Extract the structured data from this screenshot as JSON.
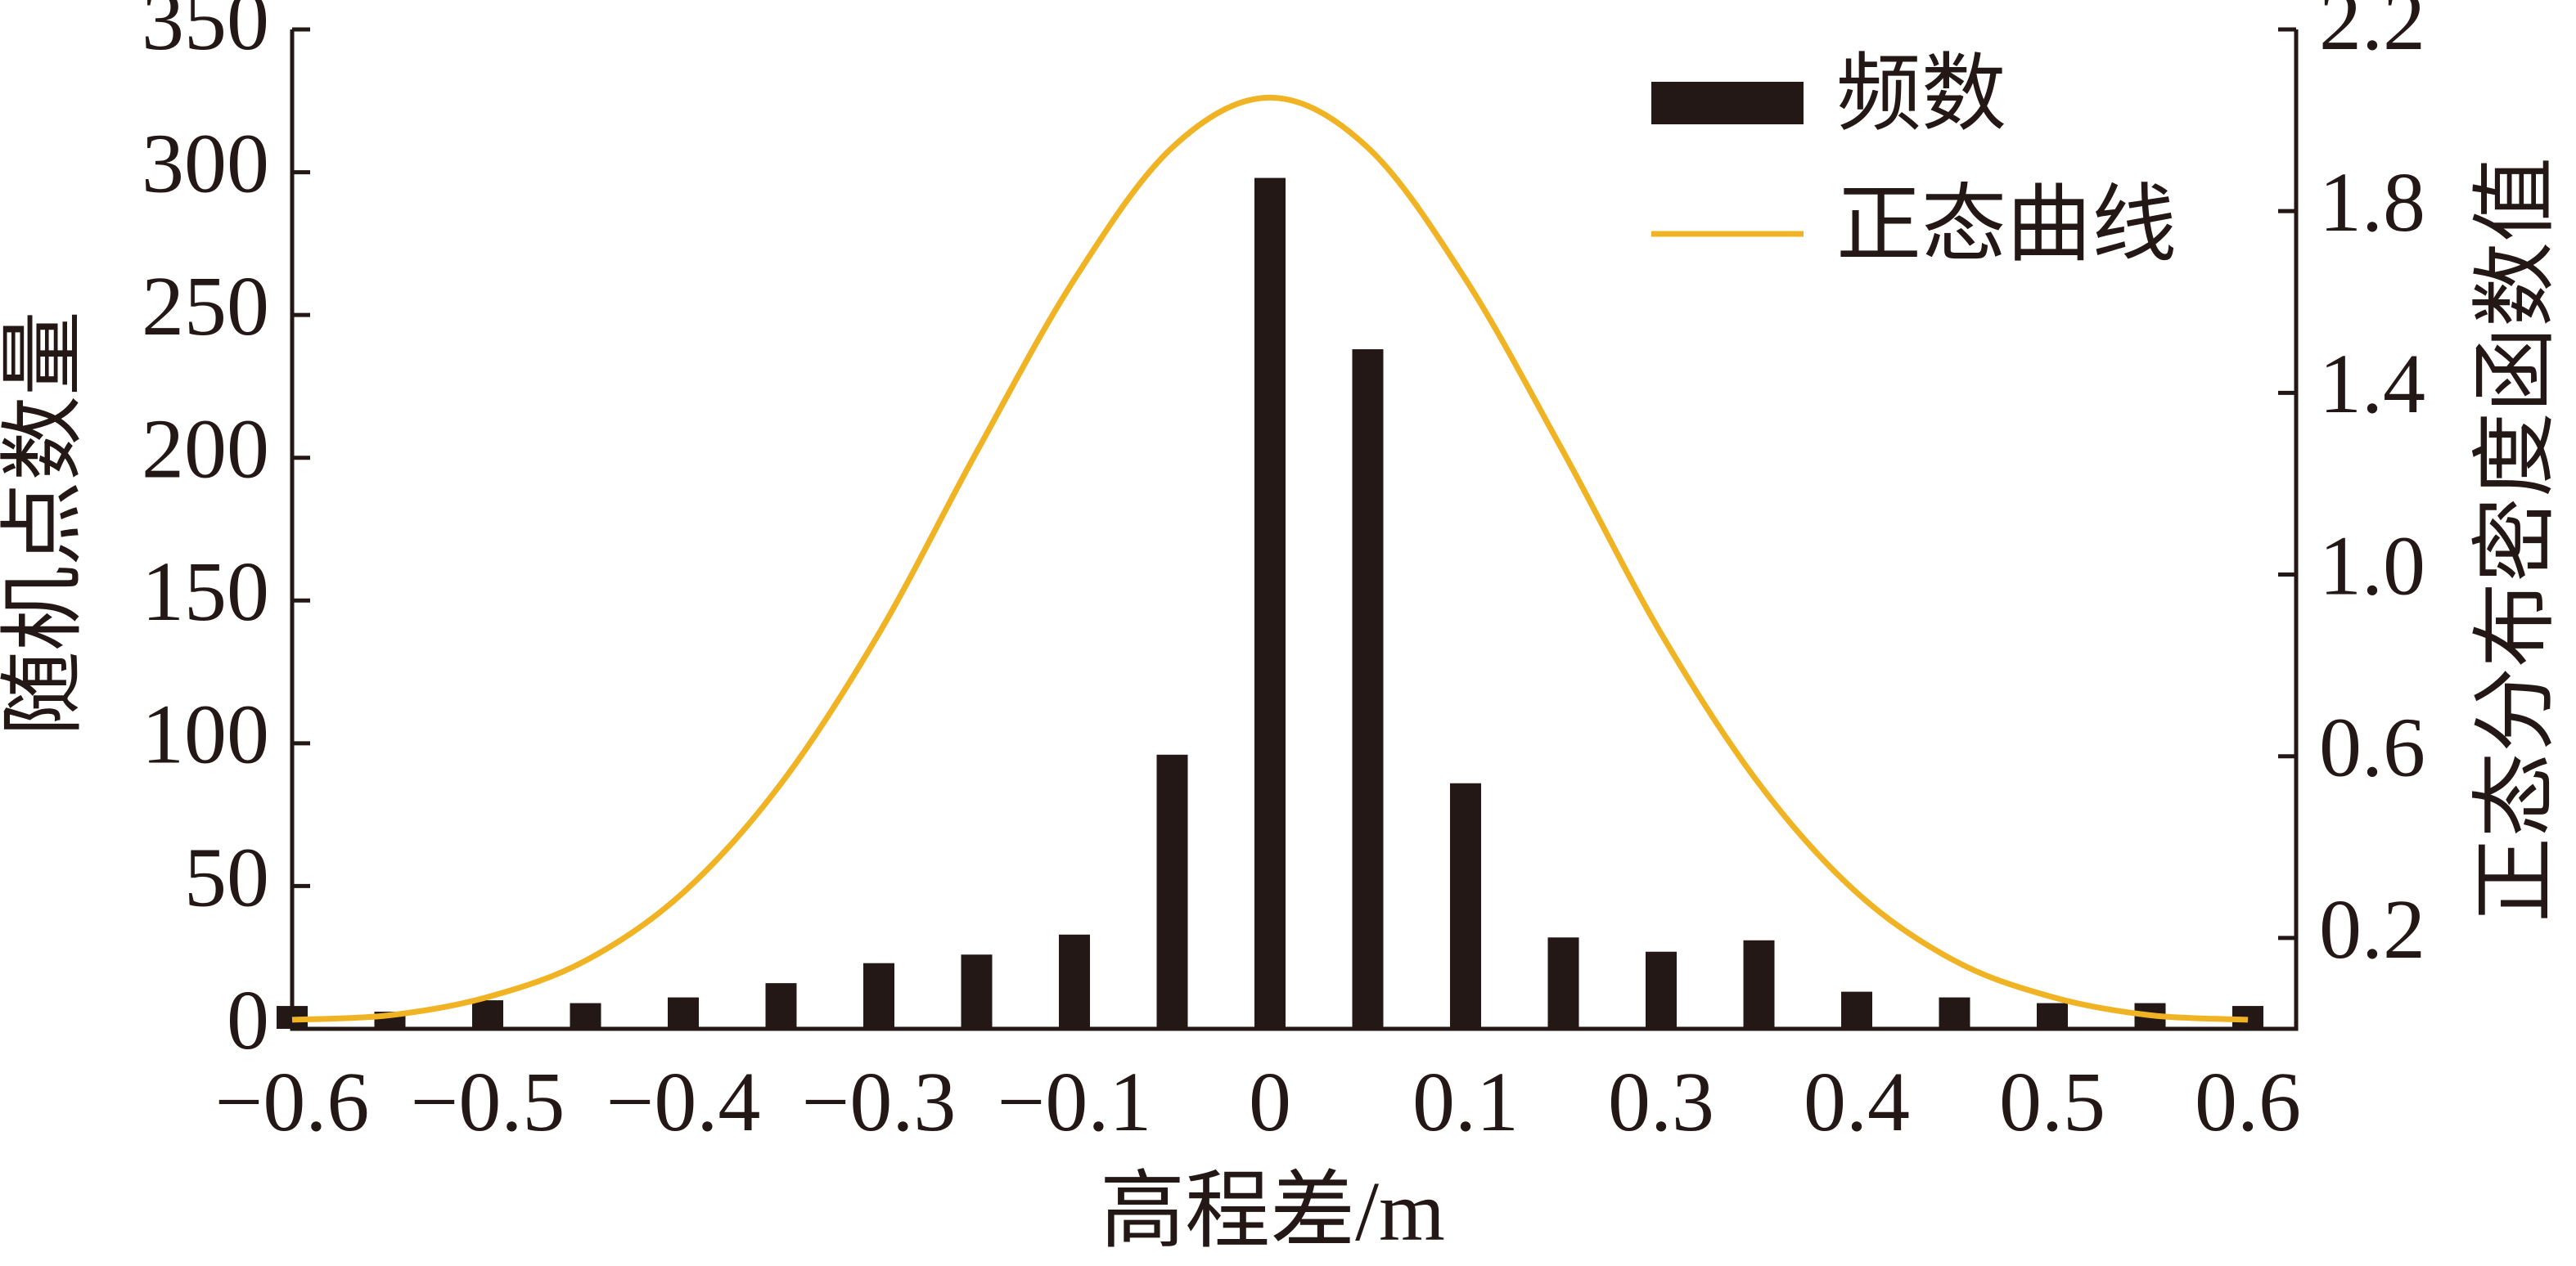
{
  "chart_data": {
    "type": "bar",
    "x_label": "高程差/m",
    "y_label": "随机点数量",
    "y2_label": "正态分布密度函数值",
    "categories": [
      "−0.6",
      null,
      "−0.5",
      null,
      "−0.4",
      null,
      "−0.3",
      null,
      "−0.1",
      null,
      "0",
      null,
      "0.1",
      null,
      "0.3",
      null,
      "0.4",
      null,
      "0.5",
      null,
      "0.6"
    ],
    "series": [
      {
        "name": "频数",
        "type": "bar",
        "color": "#231815",
        "values": [
          8,
          6,
          10,
          9,
          11,
          16,
          23,
          26,
          33,
          96,
          298,
          238,
          86,
          32,
          27,
          31,
          13,
          11,
          9,
          9,
          8
        ]
      },
      {
        "name": "正态曲线",
        "type": "line",
        "axis": "y2",
        "color": "#f0b323",
        "values": [
          0.02,
          0.03,
          0.07,
          0.15,
          0.3,
          0.54,
          0.87,
          1.27,
          1.65,
          1.94,
          2.05,
          1.94,
          1.65,
          1.27,
          0.87,
          0.54,
          0.3,
          0.15,
          0.07,
          0.03,
          0.02
        ]
      }
    ],
    "ylim": [
      0,
      350
    ],
    "yticks": [
      0,
      50,
      100,
      150,
      200,
      250,
      300,
      350
    ],
    "y2lim": [
      0,
      2.2
    ],
    "y2ticks": [
      0.2,
      0.6,
      {
        "value": 1,
        "label": "1.0"
      },
      1.4,
      1.8,
      2.2
    ],
    "legend": "upper right",
    "grid": false
  }
}
